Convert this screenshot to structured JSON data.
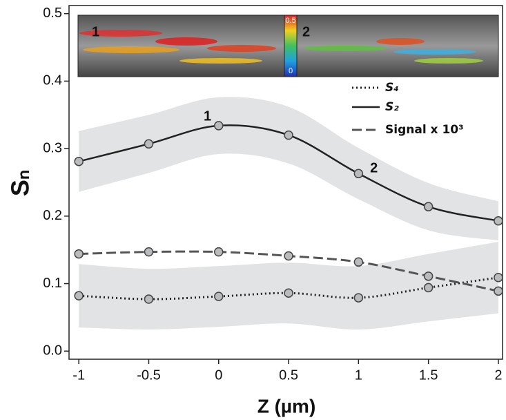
{
  "chart_data": {
    "type": "line",
    "x_label": "Z (µm)",
    "y_label": "Sₙ",
    "x": [
      -1,
      -0.5,
      0,
      0.5,
      1,
      1.5,
      2
    ],
    "series": [
      {
        "name": "S₄",
        "color": "#222222",
        "dash": "dotted",
        "values": [
          0.082,
          0.077,
          0.081,
          0.086,
          0.079,
          0.094,
          0.109
        ],
        "error": [
          0.047,
          0.045,
          0.045,
          0.045,
          0.047,
          0.05,
          0.053
        ]
      },
      {
        "name": "S₂",
        "color": "#222222",
        "dash": "solid",
        "values": [
          0.281,
          0.307,
          0.334,
          0.32,
          0.263,
          0.214,
          0.193
        ],
        "error": [
          0.045,
          0.043,
          0.042,
          0.042,
          0.038,
          0.035,
          0.029
        ]
      },
      {
        "name": "Signal x 10³",
        "color": "#555555",
        "dash": "dashed",
        "values": [
          0.144,
          0.147,
          0.147,
          0.141,
          0.132,
          0.111,
          0.089
        ]
      }
    ],
    "xlim": [
      -1.07,
      2.03
    ],
    "ylim": [
      -0.012,
      0.512
    ],
    "xticks": [
      -1,
      -0.5,
      0,
      0.5,
      1,
      1.5,
      2
    ],
    "yticks": [
      {
        "value": 0,
        "label": "0.0"
      },
      0.1,
      0.2,
      0.3,
      0.4,
      0.5
    ],
    "legend": "upper right",
    "annotations": [
      {
        "text": "1",
        "x": -0.08,
        "y": 0.347
      },
      {
        "text": "2",
        "x": 1.11,
        "y": 0.27
      }
    ],
    "inset": {
      "labels": [
        "1",
        "2"
      ],
      "colorbar": [
        "0.5",
        "0"
      ]
    }
  }
}
